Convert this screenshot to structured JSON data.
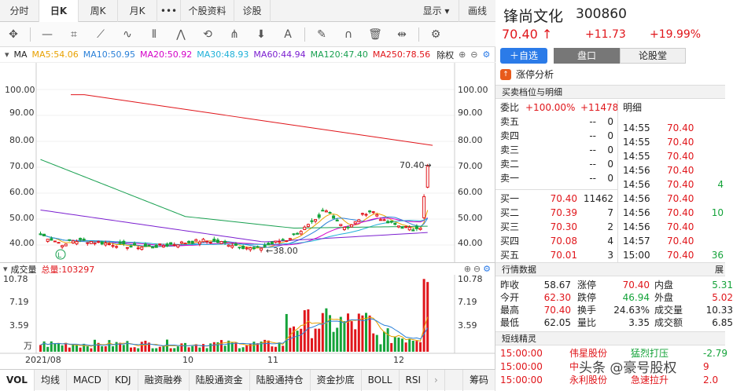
{
  "tabs": [
    "分时",
    "日K",
    "周K",
    "月K",
    "•••",
    "个股资料",
    "诊股",
    "显示 ▾",
    "画线"
  ],
  "ma": {
    "label": "MA",
    "items": [
      {
        "text": "MA5:54.06",
        "color": "#e8a100"
      },
      {
        "text": "MA10:50.95",
        "color": "#2a80d8"
      },
      {
        "text": "MA20:50.92",
        "color": "#d400c8"
      },
      {
        "text": "MA30:48.93",
        "color": "#1eb0d8"
      },
      {
        "text": "MA60:44.94",
        "color": "#7b1fd0"
      },
      {
        "text": "MA120:47.40",
        "color": "#18a050"
      },
      {
        "text": "MA250:78.56",
        "color": "#e0161b"
      }
    ],
    "fq": "除权"
  },
  "price_axis": [
    "100.00",
    "90.00",
    "80.00",
    "70.00",
    "60.00",
    "50.00",
    "40.00"
  ],
  "annotations": {
    "high": "70.40",
    "low": "38.00",
    "marker": "L"
  },
  "volume": {
    "label": "成交量",
    "total": "总量:103297",
    "axis": [
      "10.78",
      "7.19",
      "3.59",
      "万"
    ]
  },
  "dates": [
    "2021/08",
    "10",
    "11",
    "12"
  ],
  "indicators": [
    "VOL",
    "均线",
    "MACD",
    "KDJ",
    "融资融券",
    "陆股通资金",
    "陆股通持仓",
    "资金抄底",
    "BOLL",
    "RSI",
    "筹码"
  ],
  "stock": {
    "name": "锋尚文化",
    "code": "300860",
    "price": "70.40 ↑",
    "change": "+11.73",
    "pct": "+19.99%",
    "btn_add": "＋自选",
    "btn_pankou": "盘口",
    "btn_forum": "论股堂",
    "limit_analysis": "涨停分析"
  },
  "orderbook": {
    "section": "买卖档位与明细",
    "weibi_label": "委比",
    "weibi": "+100.00%",
    "weicha": "+11478",
    "detail_label": "明细",
    "sells": [
      {
        "label": "卖五",
        "price": "--",
        "vol": "0"
      },
      {
        "label": "卖四",
        "price": "--",
        "vol": "0"
      },
      {
        "label": "卖三",
        "price": "--",
        "vol": "0"
      },
      {
        "label": "卖二",
        "price": "--",
        "vol": "0"
      },
      {
        "label": "卖一",
        "price": "--",
        "vol": "0"
      }
    ],
    "buys": [
      {
        "label": "买一",
        "price": "70.40",
        "vol": "11462"
      },
      {
        "label": "买二",
        "price": "70.39",
        "vol": "7"
      },
      {
        "label": "买三",
        "price": "70.30",
        "vol": "2"
      },
      {
        "label": "买四",
        "price": "70.08",
        "vol": "4"
      },
      {
        "label": "买五",
        "price": "70.01",
        "vol": "3"
      }
    ],
    "ticks": [
      {
        "time": "14:55",
        "price": "70.40",
        "vol": ""
      },
      {
        "time": "14:55",
        "price": "70.40",
        "vol": ""
      },
      {
        "time": "14:55",
        "price": "70.40",
        "vol": ""
      },
      {
        "time": "14:56",
        "price": "70.40",
        "vol": ""
      },
      {
        "time": "14:56",
        "price": "70.40",
        "vol": "4"
      },
      {
        "time": "14:56",
        "price": "70.40",
        "vol": ""
      },
      {
        "time": "14:56",
        "price": "70.40",
        "vol": "10"
      },
      {
        "time": "14:56",
        "price": "70.40",
        "vol": ""
      },
      {
        "time": "14:57",
        "price": "70.40",
        "vol": ""
      },
      {
        "time": "15:00",
        "price": "70.40",
        "vol": "36"
      }
    ]
  },
  "quote": {
    "section": "行情数据",
    "expand": "展",
    "rows": [
      [
        {
          "l": "昨收",
          "v": "58.67"
        },
        {
          "l": "涨停",
          "v": "70.40"
        },
        {
          "l": "内盘",
          "v": "5.31"
        }
      ],
      [
        {
          "l": "今开",
          "v": "62.30"
        },
        {
          "l": "跌停",
          "v": "46.94"
        },
        {
          "l": "外盘",
          "v": "5.02"
        }
      ],
      [
        {
          "l": "最高",
          "v": "70.40"
        },
        {
          "l": "换手",
          "v": "24.63%"
        },
        {
          "l": "成交量",
          "v": "10.33"
        }
      ],
      [
        {
          "l": "最低",
          "v": "62.05"
        },
        {
          "l": "量比",
          "v": "3.35"
        },
        {
          "l": "成交额",
          "v": "6.85"
        }
      ]
    ]
  },
  "short": {
    "section": "短线精灵",
    "rows": [
      {
        "time": "15:00:00",
        "name": "伟星股份",
        "event": "猛烈打压",
        "val": "-2.79"
      },
      {
        "time": "15:00:00",
        "name": "中",
        "event": "",
        "val": "9"
      },
      {
        "time": "15:00:00",
        "name": "永利股份",
        "event": "急速拉升",
        "val": "2.0"
      }
    ],
    "watermark": "头条 @豪号股权"
  }
}
